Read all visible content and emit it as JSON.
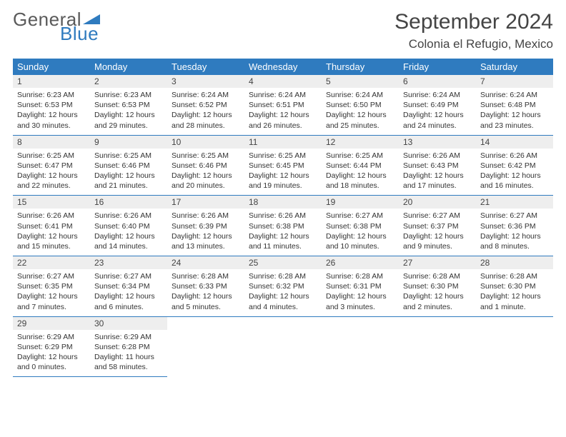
{
  "logo": {
    "text1": "General",
    "text2": "Blue"
  },
  "title": "September 2024",
  "location": "Colonia el Refugio, Mexico",
  "colors": {
    "header_bg": "#2f7bbf",
    "header_text": "#ffffff",
    "daynum_bg": "#eeeeee",
    "text": "#333333",
    "rule": "#2f7bbf",
    "background": "#ffffff",
    "logo_gray": "#5a5a5a",
    "logo_blue": "#2f7bbf"
  },
  "weekday_labels": [
    "Sunday",
    "Monday",
    "Tuesday",
    "Wednesday",
    "Thursday",
    "Friday",
    "Saturday"
  ],
  "weeks": [
    [
      {
        "day": "1",
        "sunrise": "Sunrise: 6:23 AM",
        "sunset": "Sunset: 6:53 PM",
        "d1": "Daylight: 12 hours",
        "d2": "and 30 minutes."
      },
      {
        "day": "2",
        "sunrise": "Sunrise: 6:23 AM",
        "sunset": "Sunset: 6:53 PM",
        "d1": "Daylight: 12 hours",
        "d2": "and 29 minutes."
      },
      {
        "day": "3",
        "sunrise": "Sunrise: 6:24 AM",
        "sunset": "Sunset: 6:52 PM",
        "d1": "Daylight: 12 hours",
        "d2": "and 28 minutes."
      },
      {
        "day": "4",
        "sunrise": "Sunrise: 6:24 AM",
        "sunset": "Sunset: 6:51 PM",
        "d1": "Daylight: 12 hours",
        "d2": "and 26 minutes."
      },
      {
        "day": "5",
        "sunrise": "Sunrise: 6:24 AM",
        "sunset": "Sunset: 6:50 PM",
        "d1": "Daylight: 12 hours",
        "d2": "and 25 minutes."
      },
      {
        "day": "6",
        "sunrise": "Sunrise: 6:24 AM",
        "sunset": "Sunset: 6:49 PM",
        "d1": "Daylight: 12 hours",
        "d2": "and 24 minutes."
      },
      {
        "day": "7",
        "sunrise": "Sunrise: 6:24 AM",
        "sunset": "Sunset: 6:48 PM",
        "d1": "Daylight: 12 hours",
        "d2": "and 23 minutes."
      }
    ],
    [
      {
        "day": "8",
        "sunrise": "Sunrise: 6:25 AM",
        "sunset": "Sunset: 6:47 PM",
        "d1": "Daylight: 12 hours",
        "d2": "and 22 minutes."
      },
      {
        "day": "9",
        "sunrise": "Sunrise: 6:25 AM",
        "sunset": "Sunset: 6:46 PM",
        "d1": "Daylight: 12 hours",
        "d2": "and 21 minutes."
      },
      {
        "day": "10",
        "sunrise": "Sunrise: 6:25 AM",
        "sunset": "Sunset: 6:46 PM",
        "d1": "Daylight: 12 hours",
        "d2": "and 20 minutes."
      },
      {
        "day": "11",
        "sunrise": "Sunrise: 6:25 AM",
        "sunset": "Sunset: 6:45 PM",
        "d1": "Daylight: 12 hours",
        "d2": "and 19 minutes."
      },
      {
        "day": "12",
        "sunrise": "Sunrise: 6:25 AM",
        "sunset": "Sunset: 6:44 PM",
        "d1": "Daylight: 12 hours",
        "d2": "and 18 minutes."
      },
      {
        "day": "13",
        "sunrise": "Sunrise: 6:26 AM",
        "sunset": "Sunset: 6:43 PM",
        "d1": "Daylight: 12 hours",
        "d2": "and 17 minutes."
      },
      {
        "day": "14",
        "sunrise": "Sunrise: 6:26 AM",
        "sunset": "Sunset: 6:42 PM",
        "d1": "Daylight: 12 hours",
        "d2": "and 16 minutes."
      }
    ],
    [
      {
        "day": "15",
        "sunrise": "Sunrise: 6:26 AM",
        "sunset": "Sunset: 6:41 PM",
        "d1": "Daylight: 12 hours",
        "d2": "and 15 minutes."
      },
      {
        "day": "16",
        "sunrise": "Sunrise: 6:26 AM",
        "sunset": "Sunset: 6:40 PM",
        "d1": "Daylight: 12 hours",
        "d2": "and 14 minutes."
      },
      {
        "day": "17",
        "sunrise": "Sunrise: 6:26 AM",
        "sunset": "Sunset: 6:39 PM",
        "d1": "Daylight: 12 hours",
        "d2": "and 13 minutes."
      },
      {
        "day": "18",
        "sunrise": "Sunrise: 6:26 AM",
        "sunset": "Sunset: 6:38 PM",
        "d1": "Daylight: 12 hours",
        "d2": "and 11 minutes."
      },
      {
        "day": "19",
        "sunrise": "Sunrise: 6:27 AM",
        "sunset": "Sunset: 6:38 PM",
        "d1": "Daylight: 12 hours",
        "d2": "and 10 minutes."
      },
      {
        "day": "20",
        "sunrise": "Sunrise: 6:27 AM",
        "sunset": "Sunset: 6:37 PM",
        "d1": "Daylight: 12 hours",
        "d2": "and 9 minutes."
      },
      {
        "day": "21",
        "sunrise": "Sunrise: 6:27 AM",
        "sunset": "Sunset: 6:36 PM",
        "d1": "Daylight: 12 hours",
        "d2": "and 8 minutes."
      }
    ],
    [
      {
        "day": "22",
        "sunrise": "Sunrise: 6:27 AM",
        "sunset": "Sunset: 6:35 PM",
        "d1": "Daylight: 12 hours",
        "d2": "and 7 minutes."
      },
      {
        "day": "23",
        "sunrise": "Sunrise: 6:27 AM",
        "sunset": "Sunset: 6:34 PM",
        "d1": "Daylight: 12 hours",
        "d2": "and 6 minutes."
      },
      {
        "day": "24",
        "sunrise": "Sunrise: 6:28 AM",
        "sunset": "Sunset: 6:33 PM",
        "d1": "Daylight: 12 hours",
        "d2": "and 5 minutes."
      },
      {
        "day": "25",
        "sunrise": "Sunrise: 6:28 AM",
        "sunset": "Sunset: 6:32 PM",
        "d1": "Daylight: 12 hours",
        "d2": "and 4 minutes."
      },
      {
        "day": "26",
        "sunrise": "Sunrise: 6:28 AM",
        "sunset": "Sunset: 6:31 PM",
        "d1": "Daylight: 12 hours",
        "d2": "and 3 minutes."
      },
      {
        "day": "27",
        "sunrise": "Sunrise: 6:28 AM",
        "sunset": "Sunset: 6:30 PM",
        "d1": "Daylight: 12 hours",
        "d2": "and 2 minutes."
      },
      {
        "day": "28",
        "sunrise": "Sunrise: 6:28 AM",
        "sunset": "Sunset: 6:30 PM",
        "d1": "Daylight: 12 hours",
        "d2": "and 1 minute."
      }
    ],
    [
      {
        "day": "29",
        "sunrise": "Sunrise: 6:29 AM",
        "sunset": "Sunset: 6:29 PM",
        "d1": "Daylight: 12 hours",
        "d2": "and 0 minutes."
      },
      {
        "day": "30",
        "sunrise": "Sunrise: 6:29 AM",
        "sunset": "Sunset: 6:28 PM",
        "d1": "Daylight: 11 hours",
        "d2": "and 58 minutes."
      },
      null,
      null,
      null,
      null,
      null
    ]
  ]
}
